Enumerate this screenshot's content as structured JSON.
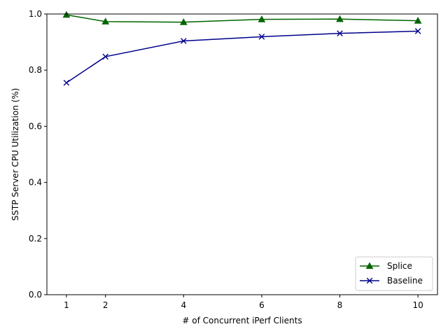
{
  "chart_data": {
    "type": "line",
    "xlabel": "# of Concurrent iPerf Clients",
    "ylabel": "SSTP Server CPU Utilization (%)",
    "xlim": [
      0.5,
      10.5
    ],
    "ylim": [
      0.0,
      1.0
    ],
    "xticks": [
      1,
      2,
      4,
      6,
      8,
      10
    ],
    "yticks": [
      0.0,
      0.2,
      0.4,
      0.6,
      0.8,
      1.0
    ],
    "xtick_labels": [
      "1",
      "2",
      "4",
      "6",
      "8",
      "10"
    ],
    "ytick_labels": [
      "0.0",
      "0.2",
      "0.4",
      "0.6",
      "0.8",
      "1.0"
    ],
    "grid": false,
    "legend_position": "lower right",
    "x": [
      1,
      2,
      4,
      6,
      8,
      10
    ],
    "series": [
      {
        "name": "Splice",
        "values": [
          0.997,
          0.973,
          0.971,
          0.981,
          0.982,
          0.976
        ],
        "color": "#006400",
        "marker": "triangle"
      },
      {
        "name": "Baseline",
        "values": [
          0.755,
          0.848,
          0.904,
          0.919,
          0.931,
          0.939
        ],
        "color": "#00008b",
        "marker": "x"
      }
    ]
  }
}
